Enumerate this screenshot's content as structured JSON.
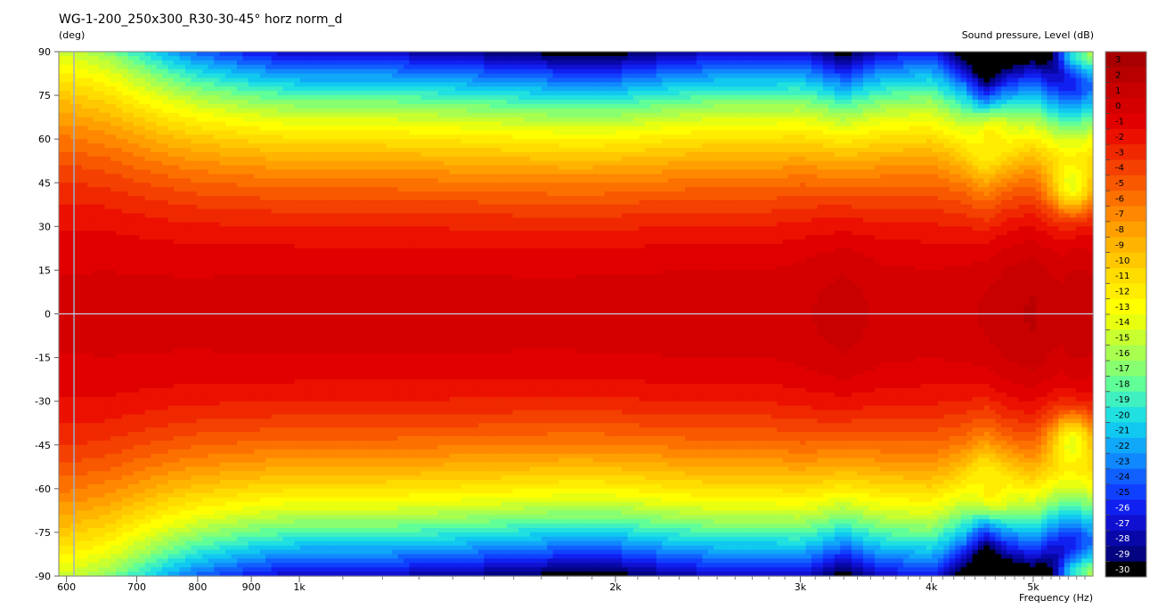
{
  "chart_data": {
    "type": "heatmap",
    "title": "WG-1-200_250x300_R30-30-45° horz norm_d",
    "ylabel": "(deg)",
    "xlabel": "Frequency  (Hz)",
    "colorbar_label": "Sound pressure, Level  (dB)",
    "x_scale": "log",
    "xlim": [
      590,
      5700
    ],
    "ylim": [
      -90,
      90
    ],
    "x_ticks": [
      {
        "value": 600,
        "label": "600"
      },
      {
        "value": 700,
        "label": "700"
      },
      {
        "value": 800,
        "label": "800"
      },
      {
        "value": 900,
        "label": "900"
      },
      {
        "value": 1000,
        "label": "1k"
      },
      {
        "value": 2000,
        "label": "2k"
      },
      {
        "value": 3000,
        "label": "3k"
      },
      {
        "value": 4000,
        "label": "4k"
      },
      {
        "value": 5000,
        "label": "5k"
      }
    ],
    "x_minor_ticks": [
      1100,
      1200,
      1300,
      1400,
      1500,
      1600,
      1700,
      1800,
      1900,
      2100,
      2200,
      2300,
      2400,
      2500,
      2600,
      2700,
      2800,
      2900,
      3100,
      3200,
      3300,
      3400,
      3500,
      3600,
      3700,
      3800,
      3900,
      4100,
      4200,
      4300,
      4400,
      4500,
      4600,
      4700,
      4800,
      4900,
      5100,
      5200,
      5300,
      5400,
      5500,
      5600
    ],
    "y_ticks": [
      "90",
      "75",
      "60",
      "45",
      "30",
      "15",
      "0",
      "-15",
      "-30",
      "-45",
      "-60",
      "-75",
      "-90"
    ],
    "y_tick_values": [
      90,
      75,
      60,
      45,
      30,
      15,
      0,
      -15,
      -30,
      -45,
      -60,
      -75,
      -90
    ],
    "reference_lines": {
      "vertical_x": 610,
      "horizontal_y": 0
    },
    "colorbar_levels": [
      "3",
      "2",
      "1",
      "0",
      "-1",
      "-2",
      "-3",
      "-4",
      "-5",
      "-6",
      "-7",
      "-8",
      "-9",
      "-10",
      "-11",
      "-12",
      "-13",
      "-14",
      "-15",
      "-16",
      "-17",
      "-18",
      "-19",
      "-20",
      "-21",
      "-22",
      "-23",
      "-24",
      "-25",
      "-26",
      "-27",
      "-28",
      "-29",
      "-30"
    ],
    "colorbar_colors": [
      "#a80000",
      "#b80000",
      "#c80000",
      "#d40000",
      "#e00000",
      "#ec1000",
      "#f02800",
      "#f44000",
      "#f85800",
      "#fc7000",
      "#ff8800",
      "#ffa000",
      "#ffb400",
      "#ffc800",
      "#ffdc00",
      "#ffec00",
      "#ffff00",
      "#e8ff10",
      "#c8ff30",
      "#a8ff50",
      "#88ff70",
      "#60ff98",
      "#40f0c0",
      "#20e0e0",
      "#10c8f0",
      "#10a8f8",
      "#1088ff",
      "#1060ff",
      "#1040ff",
      "#1020f0",
      "#1010d0",
      "#0808a8",
      "#040480",
      "#000000"
    ],
    "series": [
      {
        "x": [
          600,
          650,
          700,
          750,
          800,
          900,
          1000,
          1200,
          1500,
          1800,
          2000,
          2200,
          2500,
          2800,
          3000,
          3300,
          3600,
          4000,
          4300,
          4500,
          4700,
          5000,
          5300,
          5500,
          5700
        ],
        "beam_half_width_deg": [
          60,
          57,
          53,
          50,
          48,
          46,
          45,
          45,
          44,
          43,
          43,
          44,
          45,
          45,
          45,
          42,
          45,
          46,
          42,
          38,
          40,
          41,
          39,
          38,
          40
        ],
        "level_at_0deg_dB": [
          -0.3,
          -0.2,
          -0.2,
          -0.2,
          -0.2,
          -0.1,
          -0.1,
          -0.1,
          -0.1,
          -0.1,
          0,
          0,
          0,
          0,
          0.3,
          1.0,
          0.2,
          0,
          0.3,
          0.6,
          1.2,
          1.6,
          0.8,
          1.4,
          1.0
        ]
      }
    ],
    "features": [
      {
        "x": 4550,
        "y_abs": 60,
        "level_dB": -12
      },
      {
        "x": 5450,
        "y_abs": 45,
        "level_dB": -14
      },
      {
        "x": 5450,
        "y_abs": 90,
        "level_dB": -22
      },
      {
        "x": 5700,
        "y_abs": 90,
        "level_dB": -16
      }
    ]
  }
}
